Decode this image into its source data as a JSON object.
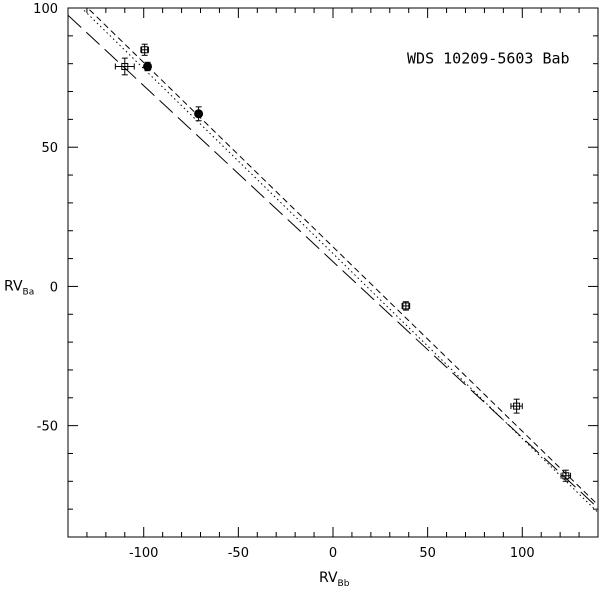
{
  "chart_data": {
    "type": "scatter",
    "title": "",
    "annotation": "WDS 10209-5603 Bab",
    "xlabel": {
      "main": "RV",
      "sub": "Bb"
    },
    "ylabel": {
      "main": "RV",
      "sub": "Ba"
    },
    "xlim": [
      -140,
      140
    ],
    "ylim": [
      -90,
      100
    ],
    "xticks": [
      -100,
      -50,
      0,
      50,
      100
    ],
    "xtick_labels": [
      "-100",
      "-50",
      "0",
      "50",
      "100"
    ],
    "yticks": [
      -50,
      0,
      50,
      100
    ],
    "ytick_labels": [
      "-50",
      "0",
      "50",
      "100"
    ],
    "grid": false,
    "series": [
      {
        "marker": "open-square",
        "points": [
          {
            "x": -110,
            "y": 79,
            "xerr": 5,
            "yerr": 3
          },
          {
            "x": -99.5,
            "y": 85,
            "xerr": 2,
            "yerr": 2
          },
          {
            "x": 38.5,
            "y": -7,
            "xerr": 2,
            "yerr": 1.5
          },
          {
            "x": 97,
            "y": -43,
            "xerr": 3,
            "yerr": 2.5
          },
          {
            "x": 123,
            "y": -68,
            "xerr": 2.5,
            "yerr": 2
          }
        ]
      },
      {
        "marker": "filled-circle",
        "points": [
          {
            "x": -98,
            "y": 79,
            "xerr": 1,
            "yerr": 1.5
          },
          {
            "x": -71,
            "y": 62,
            "xerr": 1,
            "yerr": 2.5
          }
        ]
      }
    ],
    "lines": [
      {
        "style": "short-dash",
        "x1": -140,
        "y1": 106.9,
        "x2": 140,
        "y2": -78.5
      },
      {
        "style": "dotted",
        "x1": -140,
        "y1": 104.8,
        "x2": 140,
        "y2": -81.2
      },
      {
        "style": "long-dash",
        "x1": -140,
        "y1": 97.4,
        "x2": 140,
        "y2": -79.6
      }
    ]
  }
}
